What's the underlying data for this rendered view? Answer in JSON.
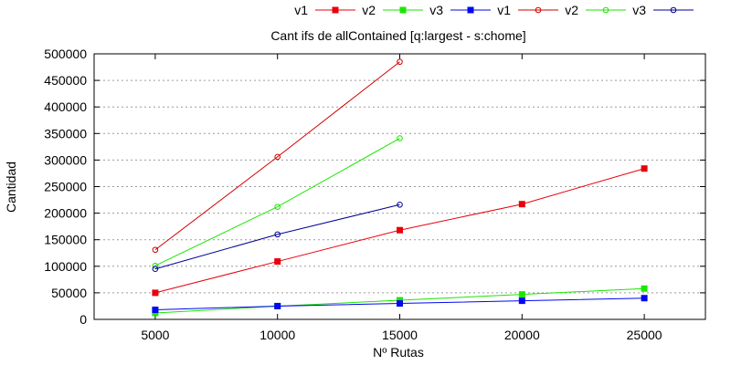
{
  "chart_data": {
    "type": "line",
    "title": "Cant ifs de allContained [q:largest - s:chome]",
    "xlabel": "Nº Rutas",
    "ylabel": "Cantidad",
    "xlim": [
      2500,
      27500
    ],
    "ylim": [
      0,
      500000
    ],
    "xticks": [
      5000,
      10000,
      15000,
      20000,
      25000
    ],
    "yticks": [
      0,
      50000,
      100000,
      150000,
      200000,
      250000,
      300000,
      350000,
      400000,
      450000,
      500000
    ],
    "grid": "horizontal dotted",
    "legend_position": "top-right",
    "series": [
      {
        "name": "v1",
        "color": "#e8000b",
        "marker": "filled-square",
        "x": [
          5000,
          10000,
          15000,
          20000,
          25000
        ],
        "values": [
          50000,
          109000,
          168000,
          217000,
          284000
        ]
      },
      {
        "name": "v2",
        "color": "#1be600",
        "marker": "filled-square",
        "x": [
          5000,
          10000,
          15000,
          20000,
          25000
        ],
        "values": [
          12000,
          25000,
          36000,
          47000,
          58000
        ]
      },
      {
        "name": "v3",
        "color": "#0008ef",
        "marker": "filled-square",
        "x": [
          5000,
          10000,
          15000,
          20000,
          25000
        ],
        "values": [
          18000,
          25000,
          30000,
          35000,
          40000
        ]
      },
      {
        "name": "v1",
        "color": "#d20000",
        "marker": "open-circle",
        "x": [
          5000,
          10000,
          15000
        ],
        "values": [
          131000,
          306000,
          485000
        ]
      },
      {
        "name": "v2",
        "color": "#1be600",
        "marker": "open-circle",
        "x": [
          5000,
          10000,
          15000
        ],
        "values": [
          101000,
          212000,
          341000
        ]
      },
      {
        "name": "v3",
        "color": "#000090",
        "marker": "open-circle",
        "x": [
          5000,
          10000,
          15000
        ],
        "values": [
          95000,
          160000,
          216000
        ]
      }
    ]
  }
}
